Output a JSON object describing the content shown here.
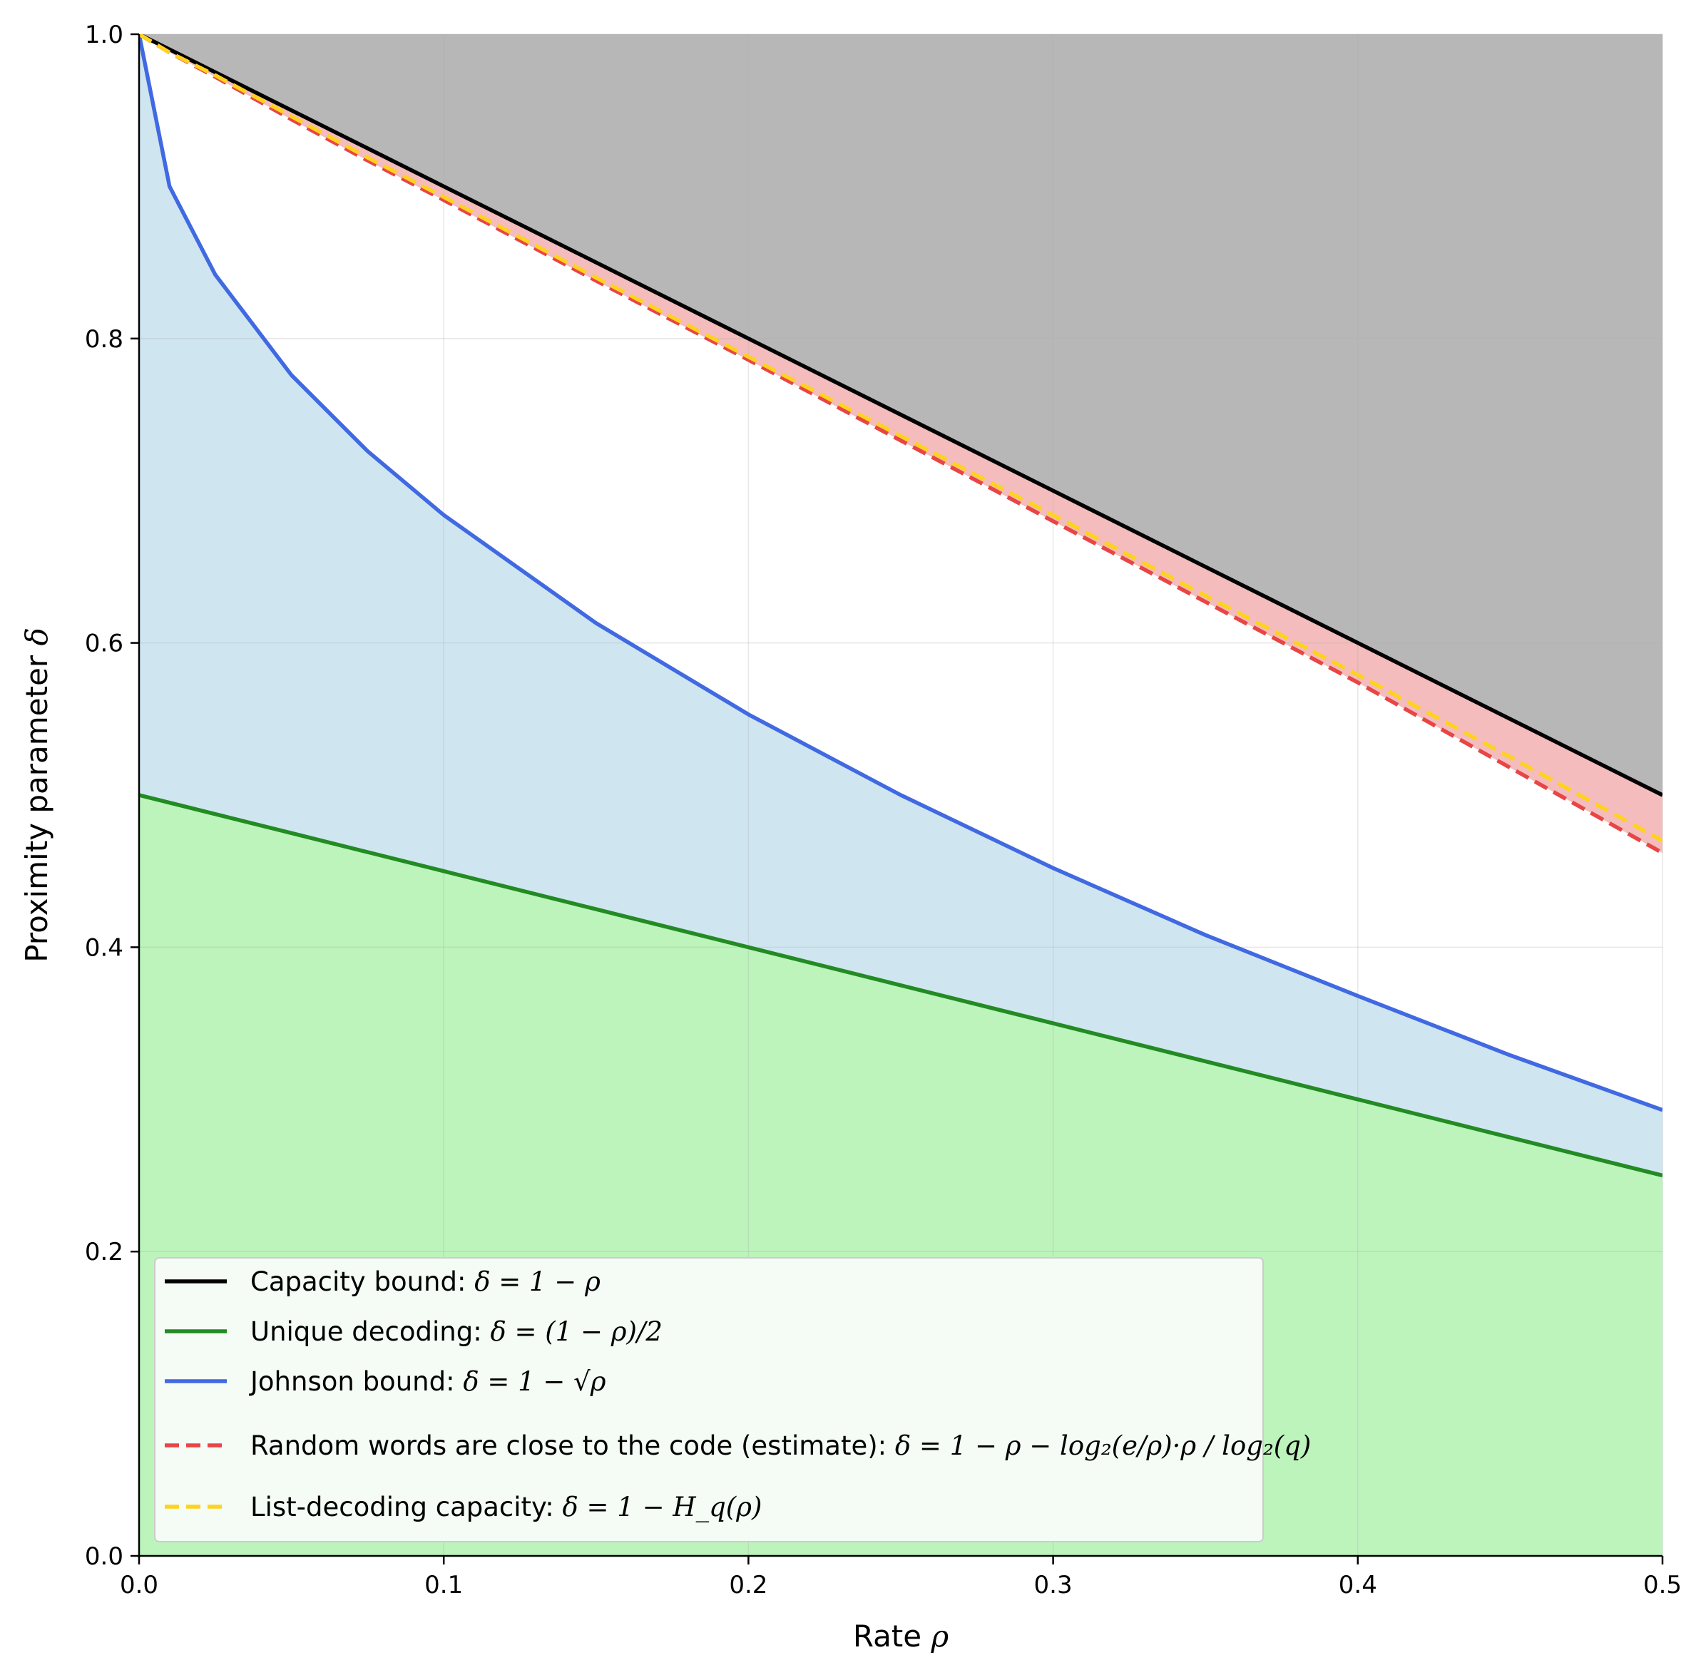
{
  "chart_data": {
    "type": "line",
    "title": "",
    "xlabel_text": "Rate",
    "xlabel_symbol": "ρ",
    "ylabel_text": "Proximity parameter",
    "ylabel_symbol": "δ",
    "xlim": [
      0.0,
      0.5
    ],
    "ylim": [
      0.0,
      1.0
    ],
    "x_ticks": [
      0.0,
      0.1,
      0.2,
      0.3,
      0.4,
      0.5
    ],
    "x_tick_labels": [
      "0.0",
      "0.1",
      "0.2",
      "0.3",
      "0.4",
      "0.5"
    ],
    "y_ticks": [
      0.0,
      0.2,
      0.4,
      0.6,
      0.8,
      1.0
    ],
    "y_tick_labels": [
      "0.0",
      "0.2",
      "0.4",
      "0.6",
      "0.8",
      "1.0"
    ],
    "grid": true,
    "legend_position": "lower-left",
    "x": [
      0.0,
      0.01,
      0.025,
      0.05,
      0.075,
      0.1,
      0.15,
      0.2,
      0.25,
      0.3,
      0.35,
      0.4,
      0.45,
      0.5
    ],
    "series": [
      {
        "name_text": "Capacity bound: ",
        "name_math": "δ = 1 − ρ",
        "color": "#000000",
        "style": "solid",
        "values": [
          1.0,
          0.99,
          0.975,
          0.95,
          0.925,
          0.9,
          0.85,
          0.8,
          0.75,
          0.7,
          0.65,
          0.6,
          0.55,
          0.5
        ]
      },
      {
        "name_text": "Unique decoding: ",
        "name_math": "δ = (1 − ρ)/2",
        "color": "#228B22",
        "style": "solid",
        "values": [
          0.5,
          0.495,
          0.4875,
          0.475,
          0.4625,
          0.45,
          0.425,
          0.4,
          0.375,
          0.35,
          0.325,
          0.3,
          0.275,
          0.25
        ]
      },
      {
        "name_text": "Johnson bound: ",
        "name_math": "δ = 1 − √ρ",
        "color": "#4169E1",
        "style": "solid",
        "values": [
          1.0,
          0.9,
          0.842,
          0.776,
          0.726,
          0.684,
          0.613,
          0.553,
          0.5,
          0.452,
          0.408,
          0.368,
          0.329,
          0.293
        ]
      },
      {
        "name_text": "Random words are close to the code (estimate): ",
        "name_math": "δ = 1 − ρ − log₂(e/ρ)·ρ / log₂(q)",
        "color": "#E84545",
        "style": "dashed",
        "values": [
          1.0,
          0.988,
          0.972,
          0.944,
          0.917,
          0.891,
          0.838,
          0.786,
          0.733,
          0.68,
          0.627,
          0.574,
          0.518,
          0.462
        ]
      },
      {
        "name_text": "List-decoding capacity: ",
        "name_math": "δ = 1 − H_q(ρ)",
        "color": "#FFD21F",
        "style": "dashed",
        "values": [
          1.0,
          0.988,
          0.973,
          0.946,
          0.919,
          0.893,
          0.84,
          0.788,
          0.736,
          0.684,
          0.631,
          0.579,
          0.525,
          0.47
        ]
      }
    ],
    "regions": [
      {
        "label": "above capacity",
        "color": "#B7B7B7"
      },
      {
        "label": "between capacity and estimate",
        "color": "#F4BCBC"
      },
      {
        "label": "below Johnson bound",
        "color": "#CFE6F1"
      },
      {
        "label": "below unique decoding",
        "color": "#BCF4BC"
      }
    ]
  }
}
